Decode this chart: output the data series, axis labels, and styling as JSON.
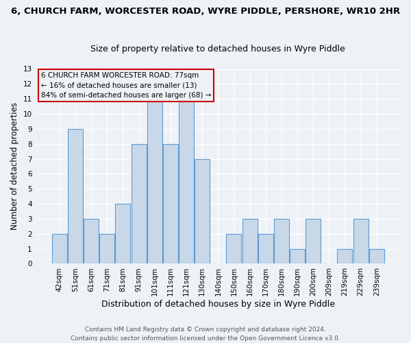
{
  "title": "6, CHURCH FARM, WORCESTER ROAD, WYRE PIDDLE, PERSHORE, WR10 2HR",
  "subtitle": "Size of property relative to detached houses in Wyre Piddle",
  "xlabel": "Distribution of detached houses by size in Wyre Piddle",
  "ylabel": "Number of detached properties",
  "categories": [
    "42sqm",
    "51sqm",
    "61sqm",
    "71sqm",
    "81sqm",
    "91sqm",
    "101sqm",
    "111sqm",
    "121sqm",
    "130sqm",
    "140sqm",
    "150sqm",
    "160sqm",
    "170sqm",
    "180sqm",
    "190sqm",
    "200sqm",
    "209sqm",
    "219sqm",
    "229sqm",
    "239sqm"
  ],
  "values": [
    2,
    9,
    3,
    2,
    4,
    8,
    11,
    8,
    11,
    7,
    0,
    2,
    3,
    2,
    3,
    1,
    3,
    0,
    1,
    3,
    1
  ],
  "bar_color": "#c8d8e8",
  "bar_edge_color": "#5b9bd5",
  "annotation_line1": "6 CHURCH FARM WORCESTER ROAD: 77sqm",
  "annotation_line2": "← 16% of detached houses are smaller (13)",
  "annotation_line3": "84% of semi-detached houses are larger (68) →",
  "annotation_box_edge": "#cc0000",
  "ylim": [
    0,
    13
  ],
  "yticks": [
    0,
    1,
    2,
    3,
    4,
    5,
    6,
    7,
    8,
    9,
    10,
    11,
    12,
    13
  ],
  "footer1": "Contains HM Land Registry data © Crown copyright and database right 2024.",
  "footer2": "Contains public sector information licensed under the Open Government Licence v3.0.",
  "bg_color": "#eef2f7",
  "grid_color": "#ffffff",
  "title_fontsize": 9.5,
  "subtitle_fontsize": 9,
  "xlabel_fontsize": 9,
  "ylabel_fontsize": 8.5,
  "tick_fontsize": 7.5,
  "ann_fontsize": 7.5,
  "footer_fontsize": 6.5
}
